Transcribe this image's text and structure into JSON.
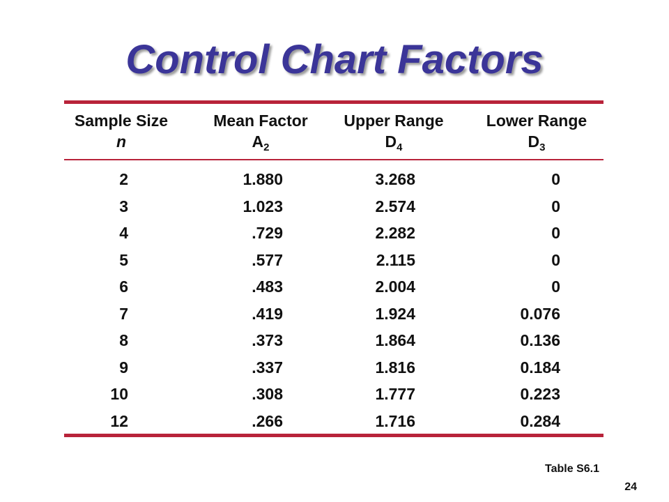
{
  "slide": {
    "title": "Control Chart Factors",
    "caption": "Table S6.1",
    "page_number": "24"
  },
  "table": {
    "headers": [
      {
        "line1": "Sample Size",
        "symbol": "n",
        "subscript": ""
      },
      {
        "line1": "Mean Factor",
        "symbol": "A",
        "subscript": "2"
      },
      {
        "line1": "Upper Range",
        "symbol": "D",
        "subscript": "4"
      },
      {
        "line1": "Lower Range",
        "symbol": "D",
        "subscript": "3"
      }
    ],
    "rows": [
      [
        "2",
        "1.880",
        "3.268",
        "0"
      ],
      [
        "3",
        "1.023",
        "2.574",
        "0"
      ],
      [
        "4",
        ".729",
        "2.282",
        "0"
      ],
      [
        "5",
        ".577",
        "2.115",
        "0"
      ],
      [
        "6",
        ".483",
        "2.004",
        "0"
      ],
      [
        "7",
        ".419",
        "1.924",
        "0.076"
      ],
      [
        "8",
        ".373",
        "1.864",
        "0.136"
      ],
      [
        "9",
        ".337",
        "1.816",
        "0.184"
      ],
      [
        "10",
        ".308",
        "1.777",
        "0.223"
      ],
      [
        "12",
        ".266",
        "1.716",
        "0.284"
      ]
    ]
  },
  "colors": {
    "title": "#3b3598",
    "rule": "#b8233a",
    "text": "#111111"
  }
}
